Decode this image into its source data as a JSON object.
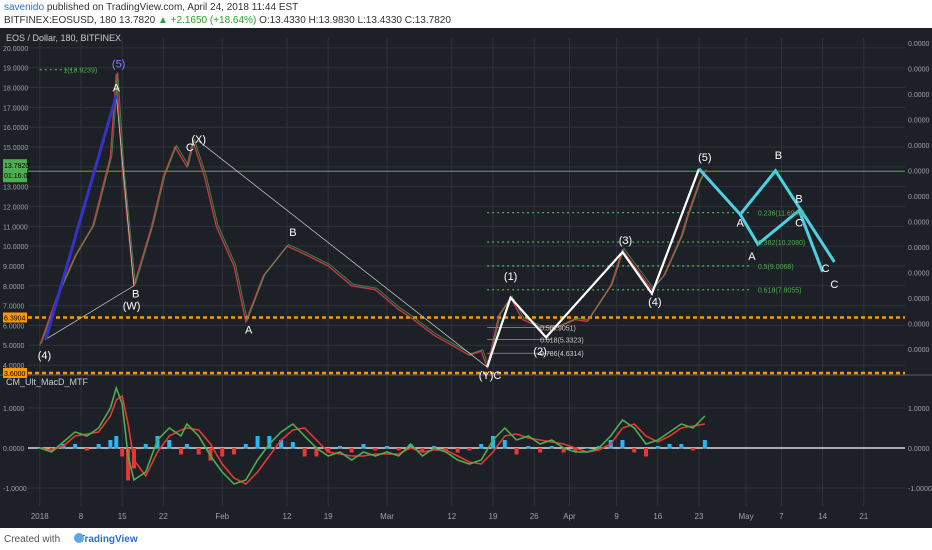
{
  "header": {
    "user": "savenido",
    "published": "published on TradingView.com, April 24, 2018 11:44 EST",
    "symbol": "BITFINEX:EOSUSD, 180",
    "last": "13.7820",
    "change": "▲ +2.1650 (+18.64%)",
    "ohlc": "O:13.4330 H:13.9830 L:13.4330 C:13.7820"
  },
  "footer": {
    "created_with": "Created with",
    "brand": "TradingView"
  },
  "colors": {
    "bg": "#1e2027",
    "grid": "#2f323c",
    "up": "#4caf50",
    "down": "#e0404a",
    "wave": "#ffffff",
    "projection": "#4dd0e1",
    "impulse": "#3333cc",
    "fib": "#4caf50",
    "support": "#ff9800",
    "macd": "#4caf50",
    "signal": "#e53935"
  },
  "chart_data": {
    "type": "line",
    "title": "EOS / Dollar, 180, BITFINEX",
    "price_axis": {
      "ticks": [
        "20.0000",
        "19.0000",
        "18.0000",
        "17.0000",
        "16.0000",
        "15.0000",
        "14.0000",
        "13.0000",
        "12.0000",
        "11.0000",
        "10.0000",
        "9.0000",
        "8.0000",
        "7.0000",
        "6.0000",
        "5.0000",
        "4.0000"
      ],
      "right_ticks": [
        "0.0000",
        "0.0000",
        "0.0000",
        "0.0000",
        "0.0000",
        "0.0000",
        "0.0000",
        "0.0000",
        "0.0000",
        "0.0000",
        "0.0000",
        "0.0000",
        "0.0000"
      ],
      "last_price": "13.7820",
      "last_price_time": "01:16:02",
      "ylim": [
        3.6,
        20.5
      ]
    },
    "time_axis": {
      "labels": [
        "2018",
        "8",
        "15",
        "22",
        "Feb",
        "12",
        "19",
        "Mar",
        "12",
        "19",
        "26",
        "Apr",
        "9",
        "16",
        "23",
        "May",
        "7",
        "14",
        "21"
      ],
      "days": [
        1,
        8,
        15,
        22,
        32,
        43,
        50,
        60,
        71,
        78,
        85,
        91,
        99,
        106,
        113,
        121,
        127,
        134,
        141
      ]
    },
    "price_path": [
      [
        1,
        5.0
      ],
      [
        4,
        7.5
      ],
      [
        7,
        9.5
      ],
      [
        10,
        11.0
      ],
      [
        13,
        14.5
      ],
      [
        14,
        18.7
      ],
      [
        15,
        14.0
      ],
      [
        17,
        8.0
      ],
      [
        20,
        11.0
      ],
      [
        22,
        13.5
      ],
      [
        24,
        15.0
      ],
      [
        26,
        14.0
      ],
      [
        27,
        15.3
      ],
      [
        29,
        13.5
      ],
      [
        31,
        11.0
      ],
      [
        34,
        9.0
      ],
      [
        36,
        6.2
      ],
      [
        39,
        8.5
      ],
      [
        43,
        10.0
      ],
      [
        46,
        9.6
      ],
      [
        50,
        9.0
      ],
      [
        54,
        8.0
      ],
      [
        58,
        7.8
      ],
      [
        62,
        6.8
      ],
      [
        64,
        6.4
      ],
      [
        68,
        5.5
      ],
      [
        71,
        5.0
      ],
      [
        74,
        4.5
      ],
      [
        76,
        4.7
      ],
      [
        77,
        3.9
      ],
      [
        79,
        6.5
      ],
      [
        81,
        7.4
      ],
      [
        83,
        6.3
      ],
      [
        86,
        5.9
      ],
      [
        89,
        5.9
      ],
      [
        92,
        6.3
      ],
      [
        94,
        6.2
      ],
      [
        98,
        8.0
      ],
      [
        100,
        9.8
      ],
      [
        102,
        9.0
      ],
      [
        105,
        7.8
      ],
      [
        107,
        8.5
      ],
      [
        110,
        10.5
      ],
      [
        111,
        11.5
      ],
      [
        113,
        13.2
      ],
      [
        114,
        13.8
      ]
    ],
    "wave_labels": [
      {
        "text": "(5)",
        "day": 14.4,
        "price": 19.0
      },
      {
        "text": "A",
        "day": 14.0,
        "price": 17.8
      },
      {
        "text": "B",
        "day": 17.3,
        "price": 7.4
      },
      {
        "text": "(W)",
        "day": 16.6,
        "price": 6.8
      },
      {
        "text": "C",
        "day": 26.5,
        "price": 14.8
      },
      {
        "text": "(X)",
        "day": 28.0,
        "price": 15.2
      },
      {
        "text": "A",
        "day": 36.5,
        "price": 5.6
      },
      {
        "text": "B",
        "day": 44.0,
        "price": 10.5
      },
      {
        "text": "(4)",
        "day": 1.8,
        "price": 4.3
      },
      {
        "text": "(Y)C",
        "day": 77.5,
        "price": 3.3
      },
      {
        "text": "(1)",
        "day": 81.0,
        "price": 8.3
      },
      {
        "text": "(2)",
        "day": 86.0,
        "price": 4.5
      },
      {
        "text": "(3)",
        "day": 100.5,
        "price": 10.1
      },
      {
        "text": "(4)",
        "day": 105.5,
        "price": 7.0
      },
      {
        "text": "(5)",
        "day": 114.0,
        "price": 14.3
      },
      {
        "text": "A",
        "day": 120.0,
        "price": 11.0
      },
      {
        "text": "B",
        "day": 126.5,
        "price": 14.4
      },
      {
        "text": "A",
        "day": 122.0,
        "price": 9.3
      },
      {
        "text": "B",
        "day": 130.0,
        "price": 12.2
      },
      {
        "text": "C",
        "day": 130.0,
        "price": 11.0
      },
      {
        "text": "C",
        "day": 134.5,
        "price": 8.7
      },
      {
        "text": "C",
        "day": 136.0,
        "price": 7.9
      }
    ],
    "fib_levels": [
      {
        "label": "1(18.9239)",
        "price": 18.9
      },
      {
        "label": "0.236(11.6943)",
        "price": 11.69
      },
      {
        "label": "0.382(10.2080)",
        "price": 10.21
      },
      {
        "label": "0.5(9.0068)",
        "price": 9.0
      },
      {
        "label": "0.618(7.8055)",
        "price": 7.8
      }
    ],
    "lower_fib_labels": [
      {
        "label": "0.5(5.9051)",
        "price": 5.9
      },
      {
        "label": "0.618(5.3323)",
        "price": 5.3
      },
      {
        "label": "0.786(4.6314)",
        "price": 4.6
      }
    ],
    "support_levels": [
      {
        "label": "6.3904",
        "price": 6.4
      },
      {
        "label": "3.6000",
        "price": 3.6
      }
    ],
    "resistance_level": 13.78,
    "white_path": [
      [
        77,
        3.9
      ],
      [
        81,
        7.4
      ],
      [
        87,
        5.4
      ],
      [
        100,
        9.7
      ],
      [
        105,
        7.6
      ],
      [
        113,
        13.9
      ]
    ],
    "cyan_path_1": [
      [
        113,
        13.9
      ],
      [
        120,
        11.6
      ],
      [
        126,
        13.8
      ],
      [
        136,
        9.2
      ]
    ],
    "cyan_path_2": [
      [
        120,
        11.6
      ],
      [
        123,
        10.1
      ],
      [
        130,
        11.8
      ],
      [
        134,
        8.7
      ]
    ],
    "blue_impulse": [
      [
        2,
        5.3
      ],
      [
        14,
        17.6
      ]
    ],
    "indicator": {
      "name": "CM_Ult_MacD_MTF",
      "ticks": [
        "1.0000",
        "0.0000",
        "-1.0000"
      ],
      "right_ticks": [
        "1.0000",
        "0.0000",
        "-1.0000"
      ],
      "macd": [
        [
          1,
          0.0
        ],
        [
          3,
          -0.1
        ],
        [
          5,
          0.15
        ],
        [
          7,
          0.4
        ],
        [
          9,
          0.3
        ],
        [
          11,
          0.5
        ],
        [
          13,
          1.0
        ],
        [
          14,
          1.5
        ],
        [
          15,
          1.1
        ],
        [
          16,
          -0.2
        ],
        [
          17,
          -0.8
        ],
        [
          19,
          -0.6
        ],
        [
          21,
          0.2
        ],
        [
          23,
          0.5
        ],
        [
          25,
          0.3
        ],
        [
          26,
          0.6
        ],
        [
          28,
          0.3
        ],
        [
          30,
          -0.2
        ],
        [
          32,
          -0.6
        ],
        [
          34,
          -0.9
        ],
        [
          36,
          -0.8
        ],
        [
          38,
          -0.3
        ],
        [
          40,
          0.1
        ],
        [
          42,
          0.4
        ],
        [
          44,
          0.6
        ],
        [
          46,
          0.3
        ],
        [
          48,
          0.0
        ],
        [
          50,
          -0.2
        ],
        [
          52,
          -0.1
        ],
        [
          54,
          -0.3
        ],
        [
          56,
          -0.1
        ],
        [
          58,
          -0.2
        ],
        [
          60,
          -0.1
        ],
        [
          62,
          -0.2
        ],
        [
          64,
          0.1
        ],
        [
          66,
          -0.2
        ],
        [
          68,
          0.0
        ],
        [
          70,
          -0.1
        ],
        [
          72,
          -0.3
        ],
        [
          74,
          -0.4
        ],
        [
          76,
          -0.3
        ],
        [
          78,
          0.2
        ],
        [
          80,
          0.5
        ],
        [
          82,
          0.2
        ],
        [
          84,
          0.3
        ],
        [
          86,
          0.1
        ],
        [
          88,
          0.2
        ],
        [
          90,
          0.0
        ],
        [
          92,
          -0.1
        ],
        [
          94,
          -0.1
        ],
        [
          96,
          0.0
        ],
        [
          98,
          0.3
        ],
        [
          100,
          0.7
        ],
        [
          102,
          0.5
        ],
        [
          104,
          0.1
        ],
        [
          106,
          0.2
        ],
        [
          108,
          0.4
        ],
        [
          110,
          0.6
        ],
        [
          112,
          0.5
        ],
        [
          114,
          0.8
        ]
      ],
      "signal": [
        [
          1,
          0.0
        ],
        [
          3,
          -0.05
        ],
        [
          5,
          0.05
        ],
        [
          7,
          0.3
        ],
        [
          9,
          0.35
        ],
        [
          11,
          0.4
        ],
        [
          13,
          0.8
        ],
        [
          14,
          1.2
        ],
        [
          15,
          1.3
        ],
        [
          16,
          0.6
        ],
        [
          17,
          -0.3
        ],
        [
          19,
          -0.7
        ],
        [
          21,
          -0.1
        ],
        [
          23,
          0.3
        ],
        [
          25,
          0.45
        ],
        [
          26,
          0.5
        ],
        [
          28,
          0.45
        ],
        [
          30,
          0.1
        ],
        [
          32,
          -0.4
        ],
        [
          34,
          -0.75
        ],
        [
          36,
          -0.9
        ],
        [
          38,
          -0.6
        ],
        [
          40,
          -0.2
        ],
        [
          42,
          0.2
        ],
        [
          44,
          0.45
        ],
        [
          46,
          0.5
        ],
        [
          48,
          0.2
        ],
        [
          50,
          -0.1
        ],
        [
          52,
          -0.15
        ],
        [
          54,
          -0.2
        ],
        [
          56,
          -0.2
        ],
        [
          58,
          -0.15
        ],
        [
          60,
          -0.15
        ],
        [
          62,
          -0.15
        ],
        [
          64,
          0.0
        ],
        [
          66,
          -0.1
        ],
        [
          68,
          -0.05
        ],
        [
          70,
          -0.05
        ],
        [
          72,
          -0.2
        ],
        [
          74,
          -0.35
        ],
        [
          76,
          -0.4
        ],
        [
          78,
          -0.1
        ],
        [
          80,
          0.3
        ],
        [
          82,
          0.35
        ],
        [
          84,
          0.25
        ],
        [
          86,
          0.2
        ],
        [
          88,
          0.15
        ],
        [
          90,
          0.1
        ],
        [
          92,
          0.0
        ],
        [
          94,
          -0.1
        ],
        [
          96,
          -0.05
        ],
        [
          98,
          0.1
        ],
        [
          100,
          0.5
        ],
        [
          102,
          0.6
        ],
        [
          104,
          0.3
        ],
        [
          106,
          0.15
        ],
        [
          108,
          0.3
        ],
        [
          110,
          0.5
        ],
        [
          112,
          0.55
        ],
        [
          114,
          0.6
        ]
      ],
      "ylim": [
        -1.45,
        1.75
      ]
    }
  }
}
